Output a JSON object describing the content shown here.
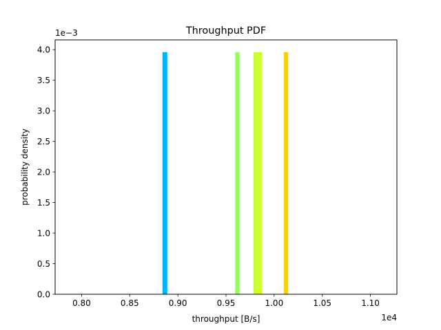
{
  "chart_data": {
    "type": "bar",
    "title": "Throughput PDF",
    "xlabel": "throughput [B/s]",
    "ylabel": "probability density",
    "x_offset_text": "1e4",
    "y_offset_text": "1e−3",
    "xlim": [
      7725,
      11275
    ],
    "ylim": [
      0,
      4.16
    ],
    "xticks": [
      8000,
      8500,
      9000,
      9500,
      10000,
      10500,
      11000
    ],
    "xtick_labels": [
      "0.80",
      "0.85",
      "0.90",
      "0.95",
      "1.00",
      "1.05",
      "1.10"
    ],
    "yticks": [
      0,
      0.5,
      1.0,
      1.5,
      2.0,
      2.5,
      3.0,
      3.5,
      4.0
    ],
    "ytick_labels": [
      "0.0",
      "0.5",
      "1.0",
      "1.5",
      "2.0",
      "2.5",
      "3.0",
      "3.5",
      "4.0"
    ],
    "grid": false,
    "legend": "none",
    "bars": [
      {
        "x_start": 8840,
        "x_end": 8890,
        "value": 3.96,
        "color": "#00b4ff"
      },
      {
        "x_start": 9595,
        "x_end": 9640,
        "value": 3.96,
        "color": "#96ff5e"
      },
      {
        "x_start": 9785,
        "x_end": 9830,
        "value": 3.96,
        "color": "#c8ff2e"
      },
      {
        "x_start": 9830,
        "x_end": 9875,
        "value": 3.96,
        "color": "#d0ff26"
      },
      {
        "x_start": 10100,
        "x_end": 10145,
        "value": 3.96,
        "color": "#ffd000"
      }
    ]
  }
}
